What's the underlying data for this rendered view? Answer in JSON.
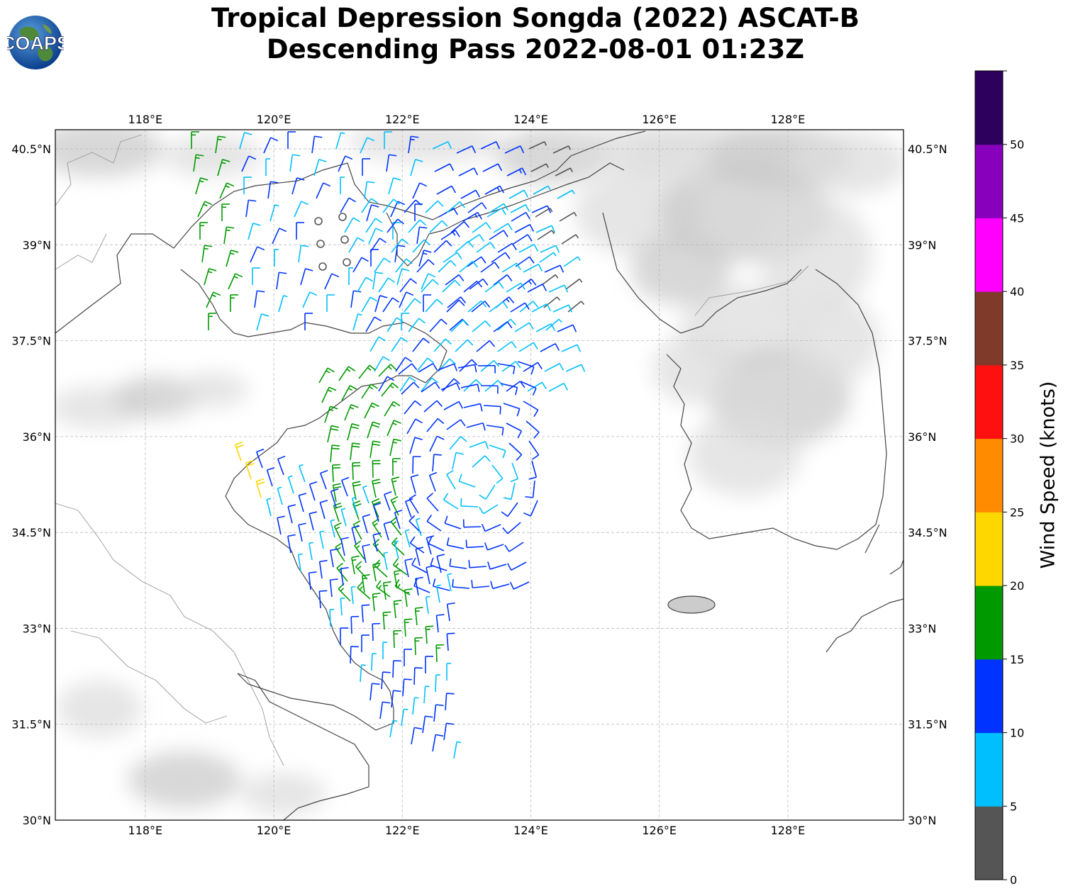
{
  "title": {
    "line1": "Tropical Depression Songda (2022) ASCAT-B",
    "line2": "Descending Pass 2022-08-01 01:23Z"
  },
  "logo": {
    "text": "COAPS",
    "icon": "globe-logo-icon"
  },
  "map": {
    "lon_range": [
      116.6,
      129.8
    ],
    "lat_range": [
      30.0,
      40.8
    ],
    "lon_ticks": [
      {
        "value": 118,
        "label": "118°E"
      },
      {
        "value": 120,
        "label": "120°E"
      },
      {
        "value": 122,
        "label": "122°E"
      },
      {
        "value": 124,
        "label": "124°E"
      },
      {
        "value": 126,
        "label": "126°E"
      },
      {
        "value": 128,
        "label": "128°E"
      }
    ],
    "lat_ticks": [
      {
        "value": 30,
        "label": "30°N"
      },
      {
        "value": 31.5,
        "label": "31.5°N"
      },
      {
        "value": 33,
        "label": "33°N"
      },
      {
        "value": 34.5,
        "label": "34.5°N"
      },
      {
        "value": 36,
        "label": "36°N"
      },
      {
        "value": 37.5,
        "label": "37.5°N"
      },
      {
        "value": 39,
        "label": "39°N"
      },
      {
        "value": 40.5,
        "label": "40.5°N"
      }
    ],
    "grid": true,
    "colors": {
      "coastline": "#444444",
      "border": "#999999",
      "grid": "#bbbbbb",
      "land_shade": "#dddddd"
    }
  },
  "colorbar": {
    "label": "Wind Speed (knots)",
    "tick_labels": [
      "0",
      "5",
      "10",
      "15",
      "20",
      "25",
      "30",
      "35",
      "40",
      "45",
      "50"
    ],
    "bins": [
      {
        "from": 0,
        "to": 5,
        "color": "#555555"
      },
      {
        "from": 5,
        "to": 10,
        "color": "#00bfff"
      },
      {
        "from": 10,
        "to": 15,
        "color": "#0033ff"
      },
      {
        "from": 15,
        "to": 20,
        "color": "#009900"
      },
      {
        "from": 20,
        "to": 25,
        "color": "#ffd700"
      },
      {
        "from": 25,
        "to": 30,
        "color": "#ff8c00"
      },
      {
        "from": 30,
        "to": 35,
        "color": "#ff1010"
      },
      {
        "from": 35,
        "to": 40,
        "color": "#7f3a2a"
      },
      {
        "from": 40,
        "to": 45,
        "color": "#ff00ff"
      },
      {
        "from": 45,
        "to": 50,
        "color": "#8800bb"
      },
      {
        "from": 50,
        "to": 55,
        "color": "#2e005e"
      }
    ]
  },
  "circulation_center": {
    "lon": 123.2,
    "lat": 35.4
  }
}
